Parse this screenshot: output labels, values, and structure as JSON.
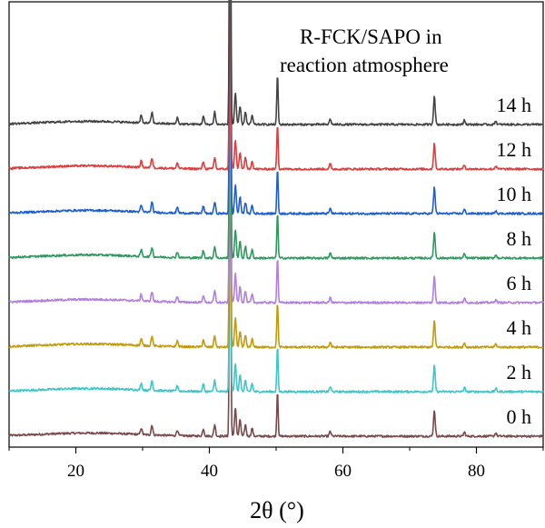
{
  "chart_data": {
    "type": "line",
    "annotation": [
      "R-FCK/SAPO in",
      "reaction atmosphere"
    ],
    "xlabel": "2θ (°)",
    "ylabel": "",
    "xlim": [
      10,
      90
    ],
    "xticks": [
      20,
      40,
      60,
      80
    ],
    "x_tick_labels": [
      "20",
      "40",
      "60",
      "80"
    ],
    "y_axis_visible": false,
    "grid": false,
    "peaks": [
      {
        "x": 29.8,
        "rel": 0.08
      },
      {
        "x": 31.4,
        "rel": 0.12
      },
      {
        "x": 35.2,
        "rel": 0.07
      },
      {
        "x": 39.1,
        "rel": 0.09
      },
      {
        "x": 40.8,
        "rel": 0.14
      },
      {
        "x": 43.1,
        "rel": 1.0
      },
      {
        "x": 43.9,
        "rel": 0.35
      },
      {
        "x": 44.6,
        "rel": 0.2
      },
      {
        "x": 45.4,
        "rel": 0.14
      },
      {
        "x": 46.4,
        "rel": 0.1
      },
      {
        "x": 50.2,
        "rel": 0.55
      },
      {
        "x": 58.1,
        "rel": 0.06
      },
      {
        "x": 73.7,
        "rel": 0.32
      },
      {
        "x": 78.2,
        "rel": 0.05
      },
      {
        "x": 82.9,
        "rel": 0.04
      }
    ],
    "series": [
      {
        "name": "0 h",
        "color": "#7a4a4a",
        "offset": 0,
        "peak_scale": 0.9
      },
      {
        "name": "2 h",
        "color": "#3ec6c8",
        "offset": 1,
        "peak_scale": 0.9
      },
      {
        "name": "4 h",
        "color": "#c49a0a",
        "offset": 2,
        "peak_scale": 0.9
      },
      {
        "name": "6 h",
        "color": "#b27fe0",
        "offset": 3,
        "peak_scale": 0.9
      },
      {
        "name": "8 h",
        "color": "#2e9a5e",
        "offset": 4,
        "peak_scale": 0.9
      },
      {
        "name": "10 h",
        "color": "#1f5fd0",
        "offset": 5,
        "peak_scale": 0.9
      },
      {
        "name": "12 h",
        "color": "#e23b3b",
        "offset": 6,
        "peak_scale": 0.9
      },
      {
        "name": "14 h",
        "color": "#444444",
        "offset": 7,
        "peak_scale": 1.0
      }
    ]
  }
}
